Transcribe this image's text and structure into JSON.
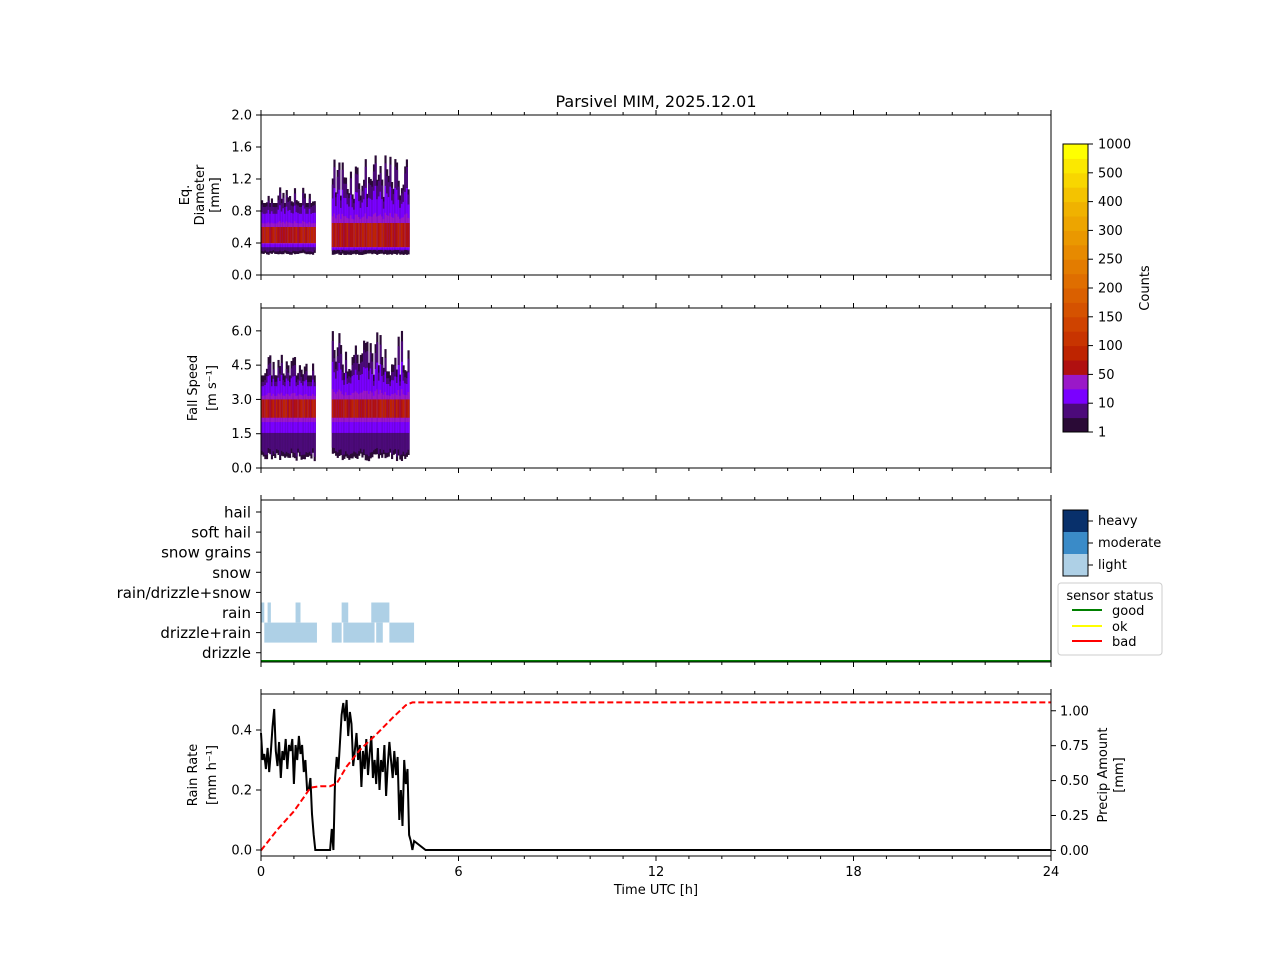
{
  "chart_data": [
    {
      "type": "heatmap",
      "title": "Parsivel MIM, 2025.12.01",
      "xlabel": "",
      "ylabel_lines": [
        "Eq.",
        "Diameter",
        "[mm]"
      ],
      "xlim": [
        0,
        24
      ],
      "ylim": [
        0,
        2.0
      ],
      "yticks": [
        0.0,
        0.4,
        0.8,
        1.2,
        1.6,
        2.0
      ],
      "ytick_labels": [
        "0.0",
        "0.4",
        "0.8",
        "1.2",
        "1.6",
        "2.0"
      ],
      "segments": [
        {
          "t_start": 0.0,
          "t_end": 1.65,
          "core_low": 0.4,
          "core_high": 0.6,
          "min": 0.25,
          "max": 1.1
        },
        {
          "t_start": 2.15,
          "t_end": 4.5,
          "core_low": 0.35,
          "core_high": 0.65,
          "min": 0.25,
          "max": 1.5
        }
      ]
    },
    {
      "type": "heatmap",
      "ylabel_lines": [
        "Fall Speed",
        "[m s⁻¹]"
      ],
      "xlim": [
        0,
        24
      ],
      "ylim": [
        0,
        7.0
      ],
      "yticks": [
        0.0,
        1.5,
        3.0,
        4.5,
        6.0
      ],
      "ytick_labels": [
        "0.0",
        "1.5",
        "3.0",
        "4.5",
        "6.0"
      ],
      "segments": [
        {
          "t_start": 0.0,
          "t_end": 1.65,
          "core_low": 2.2,
          "core_high": 3.0,
          "min": 0.3,
          "max": 5.0
        },
        {
          "t_start": 2.15,
          "t_end": 4.5,
          "core_low": 2.2,
          "core_high": 3.0,
          "min": 0.3,
          "max": 6.0
        }
      ]
    },
    {
      "type": "categorical",
      "categories": [
        "hail",
        "soft hail",
        "snow grains",
        "snow",
        "rain/drizzle+snow",
        "rain",
        "drizzle+rain",
        "drizzle"
      ],
      "xlim": [
        0,
        24
      ],
      "bars": [
        {
          "category": "rain",
          "t_start": 0.0,
          "t_end": 0.1,
          "intensity": "light"
        },
        {
          "category": "rain",
          "t_start": 0.2,
          "t_end": 0.3,
          "intensity": "light"
        },
        {
          "category": "rain",
          "t_start": 1.05,
          "t_end": 1.2,
          "intensity": "light"
        },
        {
          "category": "rain",
          "t_start": 2.45,
          "t_end": 2.65,
          "intensity": "light"
        },
        {
          "category": "rain",
          "t_start": 3.35,
          "t_end": 3.9,
          "intensity": "light"
        },
        {
          "category": "drizzle+rain",
          "t_start": 0.1,
          "t_end": 1.7,
          "intensity": "light"
        },
        {
          "category": "drizzle+rain",
          "t_start": 2.15,
          "t_end": 2.45,
          "intensity": "light"
        },
        {
          "category": "drizzle+rain",
          "t_start": 2.5,
          "t_end": 3.45,
          "intensity": "light"
        },
        {
          "category": "drizzle+rain",
          "t_start": 3.5,
          "t_end": 3.7,
          "intensity": "light"
        },
        {
          "category": "drizzle+rain",
          "t_start": 3.9,
          "t_end": 4.65,
          "intensity": "light"
        }
      ],
      "sensor_status_line": {
        "status": "good",
        "t_start": 0,
        "t_end": 24
      }
    },
    {
      "type": "line",
      "xlabel": "Time UTC [h]",
      "ylabel_lines": [
        "Rain Rate",
        "[mm h⁻¹]"
      ],
      "ylabel2_lines": [
        "Precip Amount",
        "[mm]"
      ],
      "xlim": [
        0,
        24
      ],
      "ylim": [
        -0.02,
        0.52
      ],
      "ylim2": [
        -0.04,
        1.12
      ],
      "xticks": [
        0,
        6,
        12,
        18,
        24
      ],
      "xtick_labels": [
        "0",
        "6",
        "12",
        "18",
        "24"
      ],
      "yticks": [
        0.0,
        0.2,
        0.4
      ],
      "ytick_labels": [
        "0.0",
        "0.2",
        "0.4"
      ],
      "yticks2": [
        0.0,
        0.25,
        0.5,
        0.75,
        1.0
      ],
      "ytick2_labels": [
        "0.00",
        "0.25",
        "0.50",
        "0.75",
        "1.00"
      ],
      "series": [
        {
          "name": "Rain Rate",
          "axis": "left",
          "color": "#000000",
          "style": "solid",
          "x": [
            0.0,
            0.05,
            0.1,
            0.15,
            0.2,
            0.25,
            0.3,
            0.35,
            0.4,
            0.45,
            0.5,
            0.55,
            0.6,
            0.65,
            0.7,
            0.75,
            0.8,
            0.85,
            0.9,
            0.95,
            1.0,
            1.05,
            1.1,
            1.15,
            1.2,
            1.25,
            1.3,
            1.35,
            1.4,
            1.45,
            1.5,
            1.55,
            1.6,
            1.65,
            1.7,
            1.75,
            1.8,
            1.85,
            1.9,
            1.95,
            2.0,
            2.05,
            2.1,
            2.15,
            2.2,
            2.25,
            2.3,
            2.35,
            2.4,
            2.45,
            2.5,
            2.55,
            2.6,
            2.65,
            2.7,
            2.75,
            2.8,
            2.85,
            2.9,
            2.95,
            3.0,
            3.05,
            3.1,
            3.15,
            3.2,
            3.25,
            3.3,
            3.35,
            3.4,
            3.45,
            3.5,
            3.55,
            3.6,
            3.65,
            3.7,
            3.75,
            3.8,
            3.85,
            3.9,
            3.95,
            4.0,
            4.05,
            4.1,
            4.15,
            4.2,
            4.25,
            4.3,
            4.35,
            4.4,
            4.45,
            4.5,
            4.55,
            4.6,
            4.65,
            5.0,
            24.0
          ],
          "values": [
            0.39,
            0.3,
            0.32,
            0.27,
            0.34,
            0.26,
            0.33,
            0.41,
            0.47,
            0.33,
            0.28,
            0.36,
            0.24,
            0.33,
            0.3,
            0.37,
            0.27,
            0.35,
            0.33,
            0.37,
            0.22,
            0.35,
            0.3,
            0.38,
            0.32,
            0.35,
            0.26,
            0.3,
            0.2,
            0.2,
            0.24,
            0.12,
            0.05,
            0.0,
            0.0,
            0.0,
            0.0,
            0.0,
            0.0,
            0.0,
            0.0,
            0.0,
            0.0,
            0.07,
            0.0,
            0.24,
            0.31,
            0.27,
            0.36,
            0.45,
            0.49,
            0.43,
            0.5,
            0.38,
            0.46,
            0.42,
            0.28,
            0.33,
            0.39,
            0.3,
            0.35,
            0.21,
            0.33,
            0.27,
            0.37,
            0.25,
            0.32,
            0.38,
            0.24,
            0.3,
            0.22,
            0.34,
            0.2,
            0.3,
            0.26,
            0.35,
            0.18,
            0.28,
            0.36,
            0.3,
            0.24,
            0.33,
            0.25,
            0.31,
            0.1,
            0.2,
            0.08,
            0.3,
            0.22,
            0.27,
            0.05,
            0.03,
            0.0,
            0.03,
            0.0,
            0.0
          ]
        },
        {
          "name": "Precip Amount",
          "axis": "right",
          "color": "#ff0000",
          "style": "dashed",
          "x": [
            0.0,
            0.5,
            1.0,
            1.3,
            1.5,
            1.8,
            2.1,
            2.3,
            2.6,
            3.0,
            3.5,
            4.0,
            4.4,
            4.6,
            24.0
          ],
          "values": [
            0.0,
            0.15,
            0.28,
            0.38,
            0.45,
            0.46,
            0.46,
            0.48,
            0.6,
            0.72,
            0.83,
            0.95,
            1.04,
            1.06,
            1.06
          ]
        }
      ]
    }
  ],
  "colorbar_counts": {
    "label": "Counts",
    "tick_labels": [
      "1",
      "10",
      "50",
      "100",
      "150",
      "200",
      "250",
      "300",
      "400",
      "500",
      "1000"
    ],
    "colors": [
      "#2a0a36",
      "#4c0a7a",
      "#7a00ff",
      "#9a18c8",
      "#b01010",
      "#be2400",
      "#c83400",
      "#cf4300",
      "#d55200",
      "#da6000",
      "#df6e00",
      "#e37c00",
      "#e78a00",
      "#ea9800",
      "#eda500",
      "#f0b200",
      "#f4c300",
      "#f8d600",
      "#fbe800",
      "#ffff00"
    ]
  },
  "intensity_legend": {
    "items": [
      {
        "label": "heavy",
        "color": "#08306b"
      },
      {
        "label": "moderate",
        "color": "#3a8bc8"
      },
      {
        "label": "light",
        "color": "#aed0e6"
      }
    ]
  },
  "sensor_status_legend": {
    "title": "sensor status",
    "items": [
      {
        "label": "good",
        "color": "#008000"
      },
      {
        "label": "ok",
        "color": "#ffff00"
      },
      {
        "label": "bad",
        "color": "#ff0000"
      }
    ]
  }
}
